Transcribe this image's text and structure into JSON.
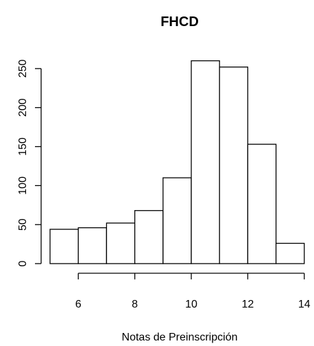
{
  "chart_data": {
    "type": "bar",
    "title": "FHCD",
    "xlabel": "Notas de Preinscripción",
    "ylabel": "",
    "bins": [
      {
        "start": 5,
        "end": 6,
        "count": 44
      },
      {
        "start": 6,
        "end": 7,
        "count": 46
      },
      {
        "start": 7,
        "end": 8,
        "count": 52
      },
      {
        "start": 8,
        "end": 9,
        "count": 68
      },
      {
        "start": 9,
        "end": 10,
        "count": 110
      },
      {
        "start": 10,
        "end": 11,
        "count": 260
      },
      {
        "start": 11,
        "end": 12,
        "count": 252
      },
      {
        "start": 12,
        "end": 13,
        "count": 153
      },
      {
        "start": 13,
        "end": 14,
        "count": 26
      }
    ],
    "xlim": [
      5,
      14
    ],
    "ylim": [
      0,
      260
    ],
    "x_ticks": [
      6,
      8,
      10,
      12,
      14
    ],
    "x_tick_labels": [
      "6",
      "8",
      "10",
      "12",
      "14"
    ],
    "y_ticks": [
      0,
      50,
      100,
      150,
      200,
      250
    ],
    "y_tick_labels": [
      "0",
      "50",
      "100",
      "150",
      "200",
      "250"
    ],
    "grid": false,
    "colors": {
      "bar_fill": "#ffffff",
      "bar_stroke": "#000000"
    }
  }
}
